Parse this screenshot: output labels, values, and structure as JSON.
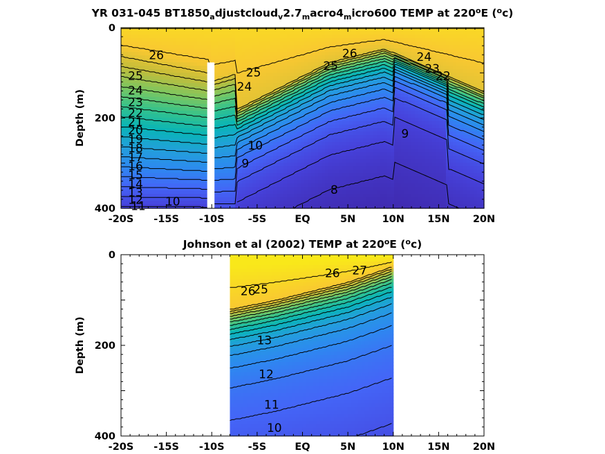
{
  "chart_data": [
    {
      "type": "heatmap",
      "subtype": "filled-contour",
      "title_parts": [
        "YR 031-045 BT1850",
        "a",
        "djustcloud",
        "v",
        "2.7",
        "m",
        "acro4",
        "m",
        "icro600 TEMP at 220",
        "o",
        "E (",
        "o",
        "c)"
      ],
      "title_sub_flags": [
        false,
        true,
        false,
        true,
        false,
        true,
        false,
        true,
        false,
        false,
        false,
        false,
        false
      ],
      "title_sup_flags": [
        false,
        false,
        false,
        false,
        false,
        false,
        false,
        false,
        false,
        true,
        false,
        true,
        false
      ],
      "xlabel": "",
      "ylabel": "Depth (m)",
      "x_ticks": [
        "-20S",
        "-15S",
        "-10S",
        "-5S",
        "EQ",
        "5N",
        "10N",
        "15N",
        "20N"
      ],
      "y_ticks": [
        "0",
        "200",
        "400"
      ],
      "xlim": [
        -20,
        20
      ],
      "ylim": [
        0,
        400
      ],
      "y_reversed": true,
      "colormap": "parula",
      "data_coverage": [
        -20,
        20
      ],
      "masked_column": {
        "lat_range": [
          -10.5,
          -9.7
        ],
        "depth_range": [
          77,
          400
        ],
        "color": "#ffffff"
      },
      "contour_labels": [
        {
          "text": "26",
          "lat": -16.1,
          "depth": 62
        },
        {
          "text": "25",
          "lat": -18.4,
          "depth": 108
        },
        {
          "text": "24",
          "lat": -18.4,
          "depth": 140
        },
        {
          "text": "23",
          "lat": -18.4,
          "depth": 166
        },
        {
          "text": "22",
          "lat": -18.4,
          "depth": 190
        },
        {
          "text": "21",
          "lat": -18.4,
          "depth": 210
        },
        {
          "text": "20",
          "lat": -18.4,
          "depth": 228
        },
        {
          "text": "19",
          "lat": -18.4,
          "depth": 248
        },
        {
          "text": "18",
          "lat": -18.4,
          "depth": 268
        },
        {
          "text": "17",
          "lat": -18.4,
          "depth": 288
        },
        {
          "text": "16",
          "lat": -18.4,
          "depth": 308
        },
        {
          "text": "15",
          "lat": -18.4,
          "depth": 328
        },
        {
          "text": "14",
          "lat": -18.4,
          "depth": 348
        },
        {
          "text": "13",
          "lat": -18.4,
          "depth": 366
        },
        {
          "text": "12",
          "lat": -18.4,
          "depth": 382
        },
        {
          "text": "11",
          "lat": -18.1,
          "depth": 396
        },
        {
          "text": "10",
          "lat": -14.3,
          "depth": 386
        },
        {
          "text": "25",
          "lat": -5.4,
          "depth": 100
        },
        {
          "text": "24",
          "lat": -6.4,
          "depth": 132
        },
        {
          "text": "9",
          "lat": -6.3,
          "depth": 302
        },
        {
          "text": "10",
          "lat": -5.2,
          "depth": 262
        },
        {
          "text": "25",
          "lat": 3.1,
          "depth": 86
        },
        {
          "text": "26",
          "lat": 5.2,
          "depth": 58
        },
        {
          "text": "24",
          "lat": 13.4,
          "depth": 66
        },
        {
          "text": "23",
          "lat": 14.3,
          "depth": 92
        },
        {
          "text": "22",
          "lat": 15.5,
          "depth": 108
        },
        {
          "text": "9",
          "lat": 11.3,
          "depth": 236
        },
        {
          "text": "8",
          "lat": 3.5,
          "depth": 360
        }
      ]
    },
    {
      "type": "heatmap",
      "subtype": "filled-contour",
      "title_parts": [
        "Johnson et al (2002) TEMP at 220",
        "o",
        "E (",
        "o",
        "c)"
      ],
      "title_sub_flags": [
        false,
        false,
        false,
        false,
        false
      ],
      "title_sup_flags": [
        false,
        true,
        false,
        true,
        false
      ],
      "xlabel": "",
      "ylabel": "Depth (m)",
      "x_ticks": [
        "-20S",
        "-15S",
        "-10S",
        "-5S",
        "EQ",
        "5N",
        "10N",
        "15N",
        "20N"
      ],
      "y_ticks": [
        "0",
        "200",
        "400"
      ],
      "xlim": [
        -20,
        20
      ],
      "ylim": [
        0,
        400
      ],
      "y_reversed": true,
      "colormap": "parula",
      "data_coverage": [
        -8,
        10
      ],
      "contour_labels": [
        {
          "text": "26",
          "lat": 3.3,
          "depth": 42
        },
        {
          "text": "27",
          "lat": 6.3,
          "depth": 36
        },
        {
          "text": "26",
          "lat": -6.0,
          "depth": 82
        },
        {
          "text": "25",
          "lat": -4.6,
          "depth": 78
        },
        {
          "text": "13",
          "lat": -4.2,
          "depth": 190
        },
        {
          "text": "12",
          "lat": -4.0,
          "depth": 265
        },
        {
          "text": "11",
          "lat": -3.4,
          "depth": 332
        },
        {
          "text": "10",
          "lat": -3.1,
          "depth": 383
        }
      ]
    }
  ]
}
